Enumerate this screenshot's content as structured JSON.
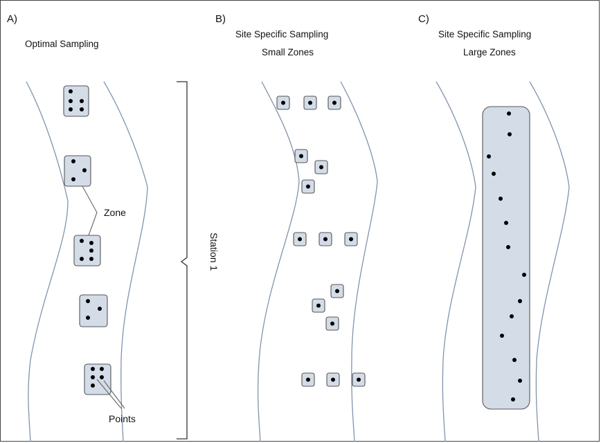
{
  "panels": [
    {
      "letter": "A)",
      "title_lines": [
        "Optimal Sampling"
      ]
    },
    {
      "letter": "B)",
      "title_lines": [
        "Site Specific Sampling",
        "Small Zones"
      ]
    },
    {
      "letter": "C)",
      "title_lines": [
        "Site Specific Sampling",
        "Large Zones"
      ]
    }
  ],
  "annotations": {
    "zone": "Zone",
    "points": "Points",
    "station": "Station 1"
  },
  "colors": {
    "zone_fill": "#d3dce7",
    "zone_stroke": "#555555",
    "river": "#7f93ad",
    "point": "#000000"
  }
}
